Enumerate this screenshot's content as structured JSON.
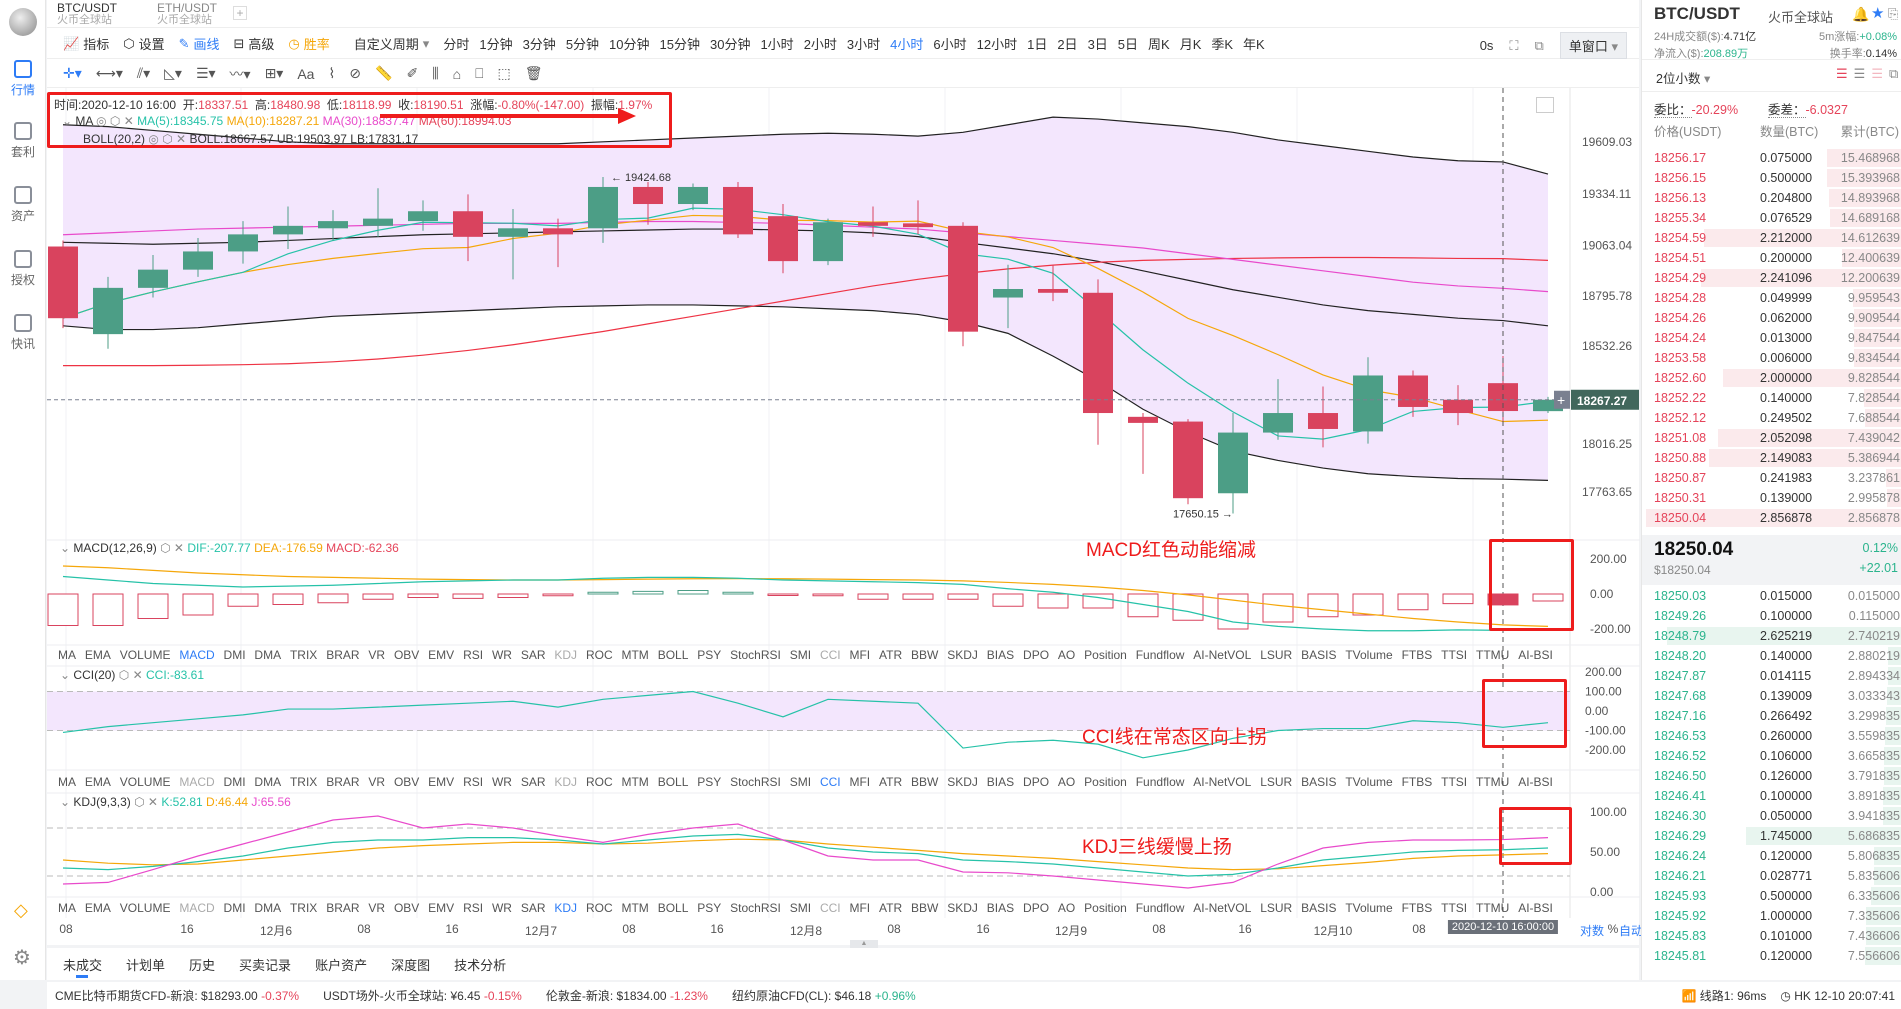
{
  "sidebar": {
    "items": [
      {
        "label": "行情"
      },
      {
        "label": "套利"
      },
      {
        "label": "资产"
      },
      {
        "label": "授权"
      },
      {
        "label": "快讯"
      }
    ]
  },
  "tabs": [
    {
      "pair": "BTC/USDT",
      "exchange": "火币全球站"
    },
    {
      "pair": "ETH/USDT",
      "exchange": "火币全球站"
    }
  ],
  "toolbar": {
    "items": [
      "指标",
      "设置",
      "画线",
      "高级",
      "胜率"
    ],
    "custom_period": "自定义周期",
    "periods": [
      "分时",
      "1分钟",
      "3分钟",
      "5分钟",
      "10分钟",
      "15分钟",
      "30分钟",
      "1小时",
      "2小时",
      "3小时",
      "4小时",
      "6小时",
      "12小时",
      "1日",
      "2日",
      "3日",
      "5日",
      "周K",
      "月K",
      "季K",
      "年K"
    ],
    "active_period": "4小时",
    "countdown": "0s",
    "window_mode": "单窗口"
  },
  "info": {
    "time": "时间:2020-12-10 16:00",
    "open_l": "开:",
    "open": "18337.51",
    "high_l": "高:",
    "high": "18480.98",
    "low_l": "低:",
    "low": "18118.99",
    "close_l": "收:",
    "close": "18190.51",
    "chg_l": "涨幅:",
    "chg": "-0.80%(-147.00)",
    "amp_l": "振幅:",
    "amp": "1.97%",
    "ma_name": "MA",
    "ma5": "MA(5):18345.75",
    "ma10": "MA(10):18287.21",
    "ma30": "MA(30):18837.47",
    "ma60": "MA(60):18994.03",
    "boll_name": "BOLL(20,2)",
    "boll": "BOLL:18667.57",
    "ub": "UB:19503.97",
    "lb": "LB:17831.17"
  },
  "macd_info": {
    "name": "MACD(12,26,9)",
    "dif": "DIF:-207.77",
    "dea": "DEA:-176.59",
    "macd": "MACD:-62.36"
  },
  "cci_info": {
    "name": "CCI(20)",
    "cci": "CCI:-83.61"
  },
  "kdj_info": {
    "name": "KDJ(9,3,3)",
    "k": "K:52.81",
    "d": "D:46.44",
    "j": "J:65.56"
  },
  "indicators": [
    "MA",
    "EMA",
    "VOLUME",
    "MACD",
    "DMI",
    "DMA",
    "TRIX",
    "BRAR",
    "VR",
    "OBV",
    "EMV",
    "RSI",
    "WR",
    "SAR",
    "KDJ",
    "ROC",
    "MTM",
    "BOLL",
    "PSY",
    "StochRSI",
    "SMI",
    "CCI",
    "MFI",
    "ATR",
    "BBW",
    "SKDJ",
    "BIAS",
    "DPO",
    "AO",
    "Position",
    "Fundflow",
    "AI-NetVOL",
    "LSUR",
    "BASIS",
    "TVolume",
    "FTBS",
    "TTSI",
    "TTMU",
    "AI-BSI"
  ],
  "annotations": {
    "macd": "MACD红色动能缩减",
    "cci": "CCI线在常态区向上拐",
    "kdj": "KDJ三线缓慢上扬"
  },
  "colors": {
    "up": "#4c9e86",
    "down": "#d9435e",
    "ma5": "#26c2a8",
    "ma10": "#f5a70a",
    "ma30": "#e84acb",
    "ma60": "#ee3344",
    "boll": "#222222",
    "boll_fill": "#f3e6fd",
    "annotation": "#ee1c1c"
  },
  "chart_data": [
    {
      "type": "candlestick",
      "title": "BTC/USDT 4小时",
      "price_ticks": [
        "19609.03",
        "19334.11",
        "19063.04",
        "18795.78",
        "18532.26",
        "18016.25",
        "17763.65"
      ],
      "last_price": "18267.27",
      "high_marker": "19424.68",
      "low_marker": "17650.15",
      "ohlc": [
        [
          19058,
          19090,
          18628,
          18680
        ],
        [
          18596,
          18898,
          18519,
          18840
        ],
        [
          18840,
          19013,
          18789,
          18936
        ],
        [
          18936,
          19103,
          18898,
          19032
        ],
        [
          19032,
          19192,
          18968,
          19122
        ],
        [
          19122,
          19269,
          19045,
          19167
        ],
        [
          19154,
          19250,
          19090,
          19192
        ],
        [
          19167,
          19365,
          19109,
          19205
        ],
        [
          19192,
          19301,
          19141,
          19244
        ],
        [
          19244,
          19333,
          18981,
          19109
        ],
        [
          19109,
          19256,
          18885,
          19154
        ],
        [
          19154,
          19205,
          18949,
          19122
        ],
        [
          19154,
          19424.68,
          19077,
          19372
        ],
        [
          19372,
          19398,
          19173,
          19282
        ],
        [
          19282,
          19390,
          19250,
          19372
        ],
        [
          19372,
          19398,
          19103,
          19122
        ],
        [
          19218,
          19282,
          18917,
          18981
        ],
        [
          18981,
          19205,
          18960,
          19186
        ],
        [
          19186,
          19269,
          19109,
          19167
        ],
        [
          19180,
          19301,
          19122,
          19160
        ],
        [
          19167,
          19186,
          18532,
          18609
        ],
        [
          18789,
          18962,
          18628,
          18834
        ],
        [
          18834,
          18962,
          18770,
          18814
        ],
        [
          18814,
          18885,
          18013,
          18180
        ],
        [
          18160,
          18180,
          17859,
          18128
        ],
        [
          18135,
          18148,
          17699,
          17731
        ],
        [
          17757,
          18180,
          17650.15,
          18077
        ],
        [
          18077,
          18359,
          18039,
          18180
        ],
        [
          18180,
          18320,
          17999,
          18096
        ],
        [
          18083,
          18474,
          18019,
          18378
        ],
        [
          18378,
          18404,
          18160,
          18212
        ],
        [
          18250,
          18327,
          18116,
          18180
        ],
        [
          18337.51,
          18480.98,
          18118.99,
          18190.51
        ],
        [
          18190,
          18265,
          18180,
          18250.04
        ]
      ],
      "ma30": [
        19120,
        19130,
        19140,
        19150,
        19155,
        19160,
        19165,
        19170,
        19175,
        19180,
        19180,
        19180,
        19185,
        19190,
        19190,
        19185,
        19180,
        19170,
        19160,
        19150,
        19130,
        19110,
        19090,
        19070,
        19050,
        19020,
        18990,
        18960,
        18930,
        18900,
        18870,
        18850,
        18837.47,
        18820
      ],
      "ma60": [
        18430,
        18430,
        18430,
        18432,
        18435,
        18440,
        18450,
        18465,
        18485,
        18510,
        18540,
        18575,
        18610,
        18650,
        18690,
        18730,
        18770,
        18810,
        18850,
        18885,
        18915,
        18940,
        18960,
        18975,
        18985,
        18990,
        18995,
        18998,
        19000,
        19000,
        18998,
        18995,
        18994.03,
        18985
      ],
      "boll_mid": [
        19080,
        19075,
        19070,
        19075,
        19080,
        19090,
        19100,
        19110,
        19120,
        19125,
        19130,
        19135,
        19140,
        19145,
        19150,
        19150,
        19145,
        19140,
        19130,
        19110,
        19080,
        19050,
        19020,
        18980,
        18930,
        18880,
        18830,
        18790,
        18750,
        18720,
        18700,
        18680,
        18667.57,
        18640
      ],
      "boll_ub": [
        19700,
        19690,
        19670,
        19650,
        19630,
        19610,
        19600,
        19600,
        19600,
        19600,
        19600,
        19600,
        19610,
        19620,
        19630,
        19640,
        19650,
        19655,
        19650,
        19640,
        19660,
        19700,
        19740,
        19730,
        19710,
        19690,
        19660,
        19620,
        19590,
        19560,
        19530,
        19510,
        19503.97,
        19440
      ],
      "boll_lb": [
        18640,
        18620,
        18620,
        18630,
        18650,
        18670,
        18690,
        18700,
        18710,
        18720,
        18730,
        18740,
        18745,
        18750,
        18750,
        18745,
        18740,
        18730,
        18720,
        18700,
        18660,
        18600,
        18480,
        18350,
        18200,
        18080,
        17980,
        17930,
        17890,
        17860,
        17845,
        17835,
        17831.17,
        17825
      ]
    },
    {
      "type": "macd",
      "ticks": [
        "200.00",
        "0.00",
        "-200.00"
      ],
      "hist": [
        -180,
        -180,
        -140,
        -120,
        -70,
        -60,
        -50,
        -30,
        -20,
        -25,
        -20,
        -10,
        10,
        15,
        20,
        10,
        -5,
        -10,
        -30,
        -30,
        -30,
        -70,
        -80,
        -80,
        -130,
        -150,
        -200,
        -160,
        -130,
        -120,
        -90,
        -55,
        -62.36,
        -40
      ],
      "dif": [
        100,
        80,
        60,
        50,
        40,
        45,
        50,
        60,
        70,
        75,
        80,
        80,
        90,
        95,
        95,
        90,
        80,
        75,
        70,
        65,
        55,
        30,
        10,
        -20,
        -60,
        -100,
        -160,
        -185,
        -200,
        -210,
        -210,
        -205,
        -207.77,
        -205
      ],
      "dea": [
        160,
        150,
        135,
        120,
        110,
        100,
        95,
        90,
        85,
        82,
        80,
        80,
        82,
        85,
        87,
        88,
        87,
        85,
        82,
        80,
        75,
        66,
        55,
        40,
        20,
        -5,
        -35,
        -65,
        -90,
        -115,
        -140,
        -160,
        -176.59,
        -185
      ]
    },
    {
      "type": "cci",
      "ticks": [
        "200.00",
        "100.00",
        "0.00",
        "-100.00",
        "-200.00"
      ],
      "cci": [
        -110,
        -80,
        -60,
        -40,
        -20,
        10,
        10,
        20,
        30,
        40,
        50,
        20,
        60,
        80,
        100,
        40,
        -30,
        60,
        50,
        40,
        -190,
        -160,
        -150,
        -170,
        -240,
        -200,
        -140,
        -100,
        -90,
        -90,
        -50,
        -60,
        -83.61,
        -60
      ]
    },
    {
      "type": "kdj",
      "ticks": [
        "100.00",
        "50.00",
        "0.00"
      ],
      "k": [
        30,
        28,
        32,
        38,
        45,
        55,
        62,
        65,
        65,
        68,
        68,
        65,
        60,
        65,
        70,
        72,
        65,
        55,
        50,
        48,
        40,
        38,
        35,
        30,
        25,
        20,
        22,
        30,
        40,
        45,
        50,
        52,
        52.81,
        55
      ],
      "d": [
        40,
        36,
        34,
        35,
        40,
        45,
        50,
        55,
        58,
        60,
        62,
        62,
        60,
        61,
        64,
        66,
        65,
        60,
        56,
        52,
        48,
        45,
        42,
        38,
        34,
        30,
        28,
        29,
        33,
        37,
        42,
        45,
        46.44,
        48
      ],
      "j": [
        10,
        12,
        28,
        45,
        60,
        75,
        90,
        95,
        80,
        85,
        80,
        70,
        62,
        72,
        80,
        85,
        65,
        45,
        40,
        40,
        25,
        24,
        20,
        15,
        10,
        5,
        12,
        35,
        55,
        62,
        65,
        65,
        65.56,
        68
      ]
    }
  ],
  "time_axis": {
    "labels": [
      "08",
      "16",
      "12月6",
      "08",
      "16",
      "12月7",
      "08",
      "16",
      "12月8",
      "08",
      "16",
      "12月9",
      "08",
      "16",
      "12月10",
      "08"
    ],
    "crosshair": "2020-12-10 16:00:00",
    "log": "对数",
    "pct": "%",
    "auto": "自动"
  },
  "bottom_tabs": [
    "未成交",
    "计划单",
    "历史",
    "买卖记录",
    "账户资产",
    "深度图",
    "技术分析"
  ],
  "status": [
    {
      "name": "CME比特币期货CFD-新浪:",
      "value": "$18293.00",
      "chg": "-0.37%"
    },
    {
      "name": "USDT场外-火币全球站:",
      "value": "¥6.45",
      "chg": "-0.15%"
    },
    {
      "name": "伦敦金-新浪:",
      "value": "$1834.00",
      "chg": "-1.23%"
    },
    {
      "name": "纽约原油CFD(CL):",
      "value": "$46.18",
      "chg": "+0.96%"
    }
  ],
  "status_right": {
    "line": "线路1: 96ms",
    "clock": "HK 12-10 20:07:41"
  },
  "right": {
    "pair": "BTC/USDT",
    "exchange": "火币全球站",
    "vol_l": "24H成交额($):",
    "vol": "4.71亿",
    "chg5_l": "5m涨幅:",
    "chg5": "+0.08%",
    "inflow_l": "净流入($):",
    "inflow": "208.89万",
    "turn_l": "换手率:",
    "turn": "0.14%",
    "decimals": "2位小数",
    "ratio_l": "委比：",
    "ratio": "-20.29%",
    "diff_l": "委差：",
    "diff": "-6.0327",
    "col_price": "价格(USDT)",
    "col_amt": "数量(BTC)",
    "col_total": "累计(BTC)",
    "asks": [
      [
        "18256.17",
        "0.075000",
        "15.468968"
      ],
      [
        "18256.15",
        "0.500000",
        "15.393968"
      ],
      [
        "18256.13",
        "0.204800",
        "14.893968"
      ],
      [
        "18255.34",
        "0.076529",
        "14.689168"
      ],
      [
        "18254.59",
        "2.212000",
        "14.612639"
      ],
      [
        "18254.51",
        "0.200000",
        "12.400639"
      ],
      [
        "18254.29",
        "2.241096",
        "12.200639"
      ],
      [
        "18254.28",
        "0.049999",
        "9.959543"
      ],
      [
        "18254.26",
        "0.062000",
        "9.909544"
      ],
      [
        "18254.24",
        "0.013000",
        "9.847544"
      ],
      [
        "18253.58",
        "0.006000",
        "9.834544"
      ],
      [
        "18252.60",
        "2.000000",
        "9.828544"
      ],
      [
        "18252.22",
        "0.140000",
        "7.828544"
      ],
      [
        "18252.12",
        "0.249502",
        "7.688544"
      ],
      [
        "18251.08",
        "2.052098",
        "7.439042"
      ],
      [
        "18250.88",
        "2.149083",
        "5.386944"
      ],
      [
        "18250.87",
        "0.241983",
        "3.237861"
      ],
      [
        "18250.31",
        "0.139000",
        "2.995878"
      ],
      [
        "18250.04",
        "2.856878",
        "2.856878"
      ]
    ],
    "mid_price": "18250.04",
    "mid_usd": "$18250.04",
    "mid_pct": "0.12%",
    "mid_chg": "+22.01",
    "bids": [
      [
        "18250.03",
        "0.015000",
        "0.015000"
      ],
      [
        "18249.26",
        "0.100000",
        "0.115000"
      ],
      [
        "18248.79",
        "2.625219",
        "2.740219"
      ],
      [
        "18248.20",
        "0.140000",
        "2.880219"
      ],
      [
        "18247.87",
        "0.014115",
        "2.894334"
      ],
      [
        "18247.68",
        "0.139009",
        "3.033343"
      ],
      [
        "18247.16",
        "0.266492",
        "3.299835"
      ],
      [
        "18246.53",
        "0.260000",
        "3.559835"
      ],
      [
        "18246.52",
        "0.106000",
        "3.665835"
      ],
      [
        "18246.50",
        "0.126000",
        "3.791835"
      ],
      [
        "18246.41",
        "0.100000",
        "3.891835"
      ],
      [
        "18246.30",
        "0.050000",
        "3.941835"
      ],
      [
        "18246.29",
        "1.745000",
        "5.686835"
      ],
      [
        "18246.24",
        "0.120000",
        "5.806835"
      ],
      [
        "18246.21",
        "0.028771",
        "5.835606"
      ],
      [
        "18245.93",
        "0.500000",
        "6.335606"
      ],
      [
        "18245.92",
        "1.000000",
        "7.335606"
      ],
      [
        "18245.83",
        "0.101000",
        "7.436606"
      ],
      [
        "18245.81",
        "0.120000",
        "7.556606"
      ]
    ]
  }
}
